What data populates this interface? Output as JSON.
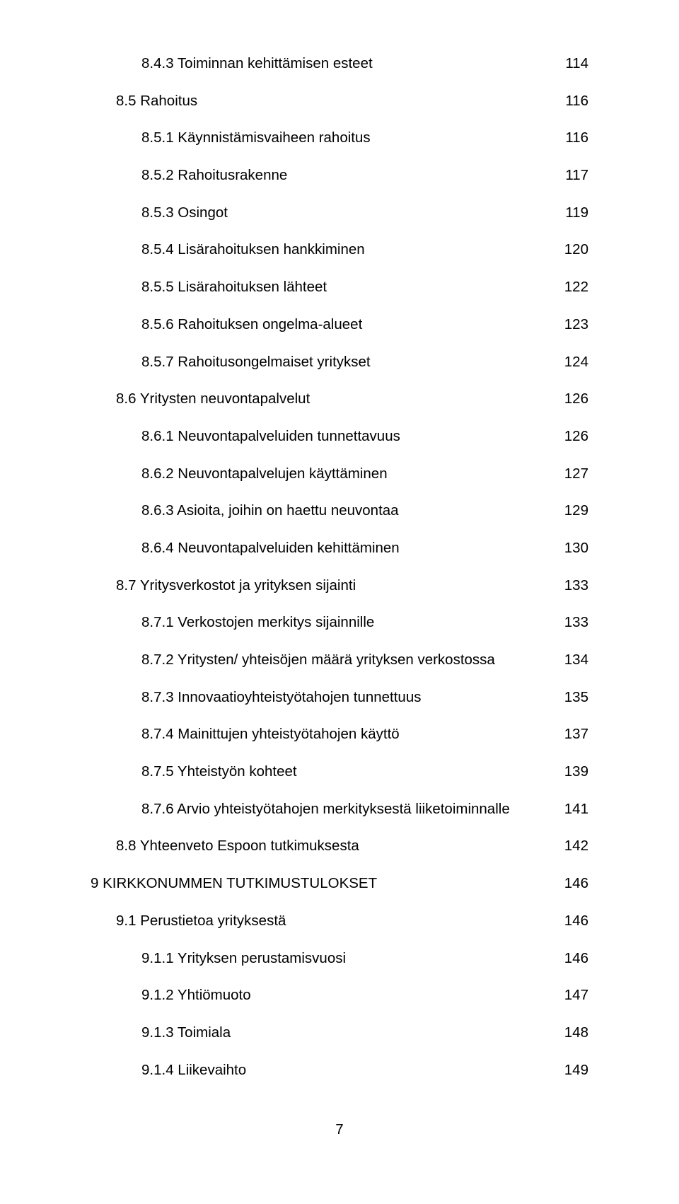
{
  "text_color": "#000000",
  "background_color": "#ffffff",
  "font_family": "Arial, Helvetica, sans-serif",
  "font_size_pt": 15,
  "toc": [
    {
      "indent": 3,
      "label": "8.4.3 Toiminnan kehittämisen esteet",
      "page": "114"
    },
    {
      "indent": 2,
      "label": "8.5 Rahoitus",
      "page": "116"
    },
    {
      "indent": 3,
      "label": "8.5.1 Käynnistämisvaiheen rahoitus",
      "page": "116"
    },
    {
      "indent": 3,
      "label": "8.5.2 Rahoitusrakenne",
      "page": "117"
    },
    {
      "indent": 3,
      "label": "8.5.3 Osingot",
      "page": "119"
    },
    {
      "indent": 3,
      "label": "8.5.4 Lisärahoituksen hankkiminen",
      "page": "120"
    },
    {
      "indent": 3,
      "label": "8.5.5 Lisärahoituksen lähteet",
      "page": "122"
    },
    {
      "indent": 3,
      "label": "8.5.6 Rahoituksen ongelma-alueet",
      "page": "123"
    },
    {
      "indent": 3,
      "label": "8.5.7 Rahoitusongelmaiset yritykset",
      "page": "124"
    },
    {
      "indent": 2,
      "label": "8.6 Yritysten neuvontapalvelut",
      "page": "126"
    },
    {
      "indent": 3,
      "label": "8.6.1 Neuvontapalveluiden tunnettavuus",
      "page": "126"
    },
    {
      "indent": 3,
      "label": "8.6.2 Neuvontapalvelujen käyttäminen",
      "page": "127"
    },
    {
      "indent": 3,
      "label": "8.6.3 Asioita, joihin on haettu neuvontaa",
      "page": "129"
    },
    {
      "indent": 3,
      "label": "8.6.4 Neuvontapalveluiden kehittäminen",
      "page": "130"
    },
    {
      "indent": 2,
      "label": "8.7 Yritysverkostot ja yrityksen sijainti",
      "page": "133"
    },
    {
      "indent": 3,
      "label": "8.7.1 Verkostojen merkitys sijainnille",
      "page": "133"
    },
    {
      "indent": 3,
      "label": "8.7.2 Yritysten/ yhteisöjen määrä yrityksen verkostossa",
      "page": "134"
    },
    {
      "indent": 3,
      "label": "8.7.3 Innovaatioyhteistyötahojen tunnettuus",
      "page": "135"
    },
    {
      "indent": 3,
      "label": "8.7.4 Mainittujen yhteistyötahojen käyttö",
      "page": "137"
    },
    {
      "indent": 3,
      "label": "8.7.5 Yhteistyön kohteet",
      "page": "139"
    },
    {
      "indent": 3,
      "label": "8.7.6 Arvio yhteistyötahojen merkityksestä liiketoiminnalle",
      "page": "141"
    },
    {
      "indent": 2,
      "label": "8.8 Yhteenveto Espoon tutkimuksesta",
      "page": "142"
    },
    {
      "indent": 0,
      "label": "9 KIRKKONUMMEN TUTKIMUSTULOKSET",
      "page": "146"
    },
    {
      "indent": 2,
      "label": "9.1 Perustietoa yrityksestä",
      "page": "146"
    },
    {
      "indent": 3,
      "label": "9.1.1 Yrityksen perustamisvuosi",
      "page": "146"
    },
    {
      "indent": 3,
      "label": "9.1.2 Yhtiömuoto",
      "page": "147"
    },
    {
      "indent": 3,
      "label": "9.1.3 Toimiala",
      "page": "148"
    },
    {
      "indent": 3,
      "label": "9.1.4 Liikevaihto",
      "page": "149"
    }
  ],
  "footer_page_number": "7"
}
